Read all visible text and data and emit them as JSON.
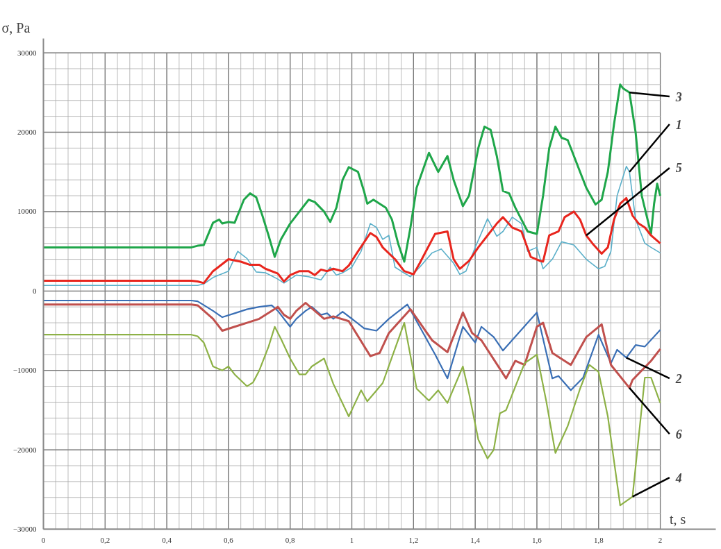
{
  "chart_data": {
    "type": "line",
    "xlabel": "t, s",
    "ylabel": "σ, Pa",
    "xlim": [
      0,
      2.18
    ],
    "ylim": [
      -30000,
      31800
    ],
    "xticks": [
      0,
      {
        "value": 0.2,
        "label": "0,2"
      },
      {
        "value": 0.4,
        "label": "0,4"
      },
      {
        "value": 0.6,
        "label": "0,6"
      },
      {
        "value": 0.8,
        "label": "0,8"
      },
      1,
      {
        "value": 1.2,
        "label": "1,2"
      },
      {
        "value": 1.4,
        "label": "1,4"
      },
      {
        "value": 1.6,
        "label": "1,6"
      },
      {
        "value": 1.8,
        "label": "1,8"
      },
      2
    ],
    "yticks": [
      -30000,
      -20000,
      -10000,
      0,
      10000,
      20000,
      30000
    ],
    "grid": true,
    "marker": "none",
    "line_style": "solid",
    "series": [
      {
        "name": "3",
        "color": "#1fa64a",
        "x": [
          0,
          0.48,
          0.5,
          0.52,
          0.55,
          0.57,
          0.58,
          0.6,
          0.62,
          0.65,
          0.67,
          0.69,
          0.71,
          0.73,
          0.75,
          0.77,
          0.8,
          0.83,
          0.86,
          0.88,
          0.91,
          0.93,
          0.95,
          0.97,
          0.99,
          1.02,
          1.04,
          1.05,
          1.07,
          1.09,
          1.11,
          1.13,
          1.15,
          1.17,
          1.19,
          1.21,
          1.25,
          1.28,
          1.31,
          1.33,
          1.36,
          1.38,
          1.41,
          1.43,
          1.45,
          1.47,
          1.49,
          1.51,
          1.53,
          1.55,
          1.57,
          1.6,
          1.62,
          1.64,
          1.66,
          1.68,
          1.7,
          1.72,
          1.74,
          1.76,
          1.79,
          1.81,
          1.83,
          1.85,
          1.87,
          1.88,
          1.9,
          1.92,
          1.94,
          1.97,
          1.98,
          1.99,
          2.0
        ],
        "values": [
          5500,
          5500,
          5700,
          5800,
          8600,
          9000,
          8500,
          8700,
          8600,
          11500,
          12300,
          11800,
          9500,
          7000,
          4300,
          6500,
          8500,
          10000,
          11500,
          11200,
          10000,
          8700,
          10500,
          14000,
          15600,
          15000,
          12500,
          11000,
          11500,
          11000,
          10500,
          9000,
          6000,
          3700,
          8000,
          13000,
          17400,
          15000,
          17000,
          14000,
          10700,
          12000,
          18000,
          20700,
          20300,
          17000,
          12600,
          12300,
          10500,
          9000,
          7500,
          7200,
          12000,
          18000,
          20700,
          19300,
          19000,
          17000,
          15000,
          13000,
          10900,
          11500,
          15000,
          21000,
          26000,
          25500,
          25000,
          20000,
          12000,
          7200,
          11000,
          13500,
          12000
        ]
      },
      {
        "name": "1",
        "color": "#5aafc9",
        "x": [
          0,
          0.48,
          0.5,
          0.52,
          0.55,
          0.6,
          0.63,
          0.66,
          0.69,
          0.72,
          0.76,
          0.78,
          0.82,
          0.86,
          0.9,
          0.93,
          0.95,
          0.97,
          1.0,
          1.03,
          1.06,
          1.08,
          1.1,
          1.12,
          1.14,
          1.16,
          1.19,
          1.22,
          1.26,
          1.29,
          1.33,
          1.35,
          1.37,
          1.4,
          1.44,
          1.47,
          1.49,
          1.52,
          1.55,
          1.57,
          1.6,
          1.62,
          1.65,
          1.68,
          1.72,
          1.76,
          1.8,
          1.82,
          1.84,
          1.86,
          1.89,
          1.9,
          1.92,
          1.95,
          1.97,
          2.0
        ],
        "values": [
          700,
          700,
          700,
          900,
          1700,
          2500,
          5000,
          4100,
          2400,
          2300,
          1500,
          1000,
          2000,
          1800,
          1400,
          3000,
          2000,
          2300,
          3000,
          5000,
          8500,
          8000,
          6500,
          7000,
          3000,
          2500,
          1800,
          3000,
          4800,
          5300,
          3500,
          2100,
          2500,
          5500,
          9100,
          6900,
          7500,
          9300,
          8500,
          5000,
          5500,
          2800,
          4000,
          6200,
          5800,
          4000,
          2800,
          3100,
          5000,
          12000,
          15700,
          15000,
          9000,
          6000,
          5500,
          4800
        ]
      },
      {
        "name": "5",
        "color": "#e8261e",
        "x": [
          0,
          0.48,
          0.5,
          0.52,
          0.55,
          0.6,
          0.64,
          0.67,
          0.7,
          0.72,
          0.76,
          0.78,
          0.8,
          0.83,
          0.86,
          0.88,
          0.9,
          0.92,
          0.94,
          0.97,
          0.99,
          1.02,
          1.06,
          1.08,
          1.1,
          1.14,
          1.17,
          1.2,
          1.22,
          1.27,
          1.31,
          1.33,
          1.35,
          1.38,
          1.41,
          1.44,
          1.47,
          1.49,
          1.52,
          1.55,
          1.58,
          1.61,
          1.62,
          1.64,
          1.67,
          1.69,
          1.72,
          1.74,
          1.76,
          1.78,
          1.81,
          1.83,
          1.85,
          1.87,
          1.89,
          1.91,
          1.93,
          1.95,
          1.97,
          2.0
        ],
        "values": [
          1300,
          1300,
          1200,
          1000,
          2500,
          4000,
          3700,
          3300,
          3300,
          2800,
          2200,
          1200,
          2000,
          2500,
          2500,
          2000,
          2700,
          2500,
          2800,
          2500,
          3200,
          5000,
          7300,
          6800,
          5500,
          4000,
          2500,
          2100,
          3500,
          7200,
          7500,
          4000,
          2800,
          3800,
          5500,
          7000,
          8500,
          9300,
          8000,
          7500,
          4300,
          3800,
          3700,
          7000,
          7500,
          9300,
          10000,
          9000,
          7000,
          6000,
          4700,
          5500,
          9000,
          11000,
          11700,
          9500,
          8500,
          8000,
          7000,
          6000
        ]
      },
      {
        "name": "2",
        "color": "#3a6fb5",
        "x": [
          0,
          0.48,
          0.5,
          0.55,
          0.58,
          0.62,
          0.66,
          0.7,
          0.74,
          0.76,
          0.8,
          0.82,
          0.85,
          0.87,
          0.9,
          0.92,
          0.94,
          0.97,
          1.04,
          1.08,
          1.12,
          1.18,
          1.22,
          1.27,
          1.31,
          1.36,
          1.4,
          1.42,
          1.46,
          1.49,
          1.54,
          1.6,
          1.65,
          1.67,
          1.71,
          1.75,
          1.8,
          1.84,
          1.86,
          1.89,
          1.92,
          1.95,
          2.0
        ],
        "values": [
          -1200,
          -1200,
          -1300,
          -2500,
          -3300,
          -2800,
          -2300,
          -2000,
          -1800,
          -2500,
          -4500,
          -3500,
          -2500,
          -2000,
          -3000,
          -2800,
          -3500,
          -2600,
          -4700,
          -5000,
          -3500,
          -1700,
          -4500,
          -8000,
          -11000,
          -4500,
          -6500,
          -4500,
          -5800,
          -7500,
          -5300,
          -2700,
          -11000,
          -10700,
          -12500,
          -10900,
          -5500,
          -9100,
          -7400,
          -8400,
          -6800,
          -7000,
          -4900
        ]
      },
      {
        "name": "6",
        "color": "#c0504d",
        "x": [
          0,
          0.48,
          0.5,
          0.55,
          0.58,
          0.62,
          0.66,
          0.7,
          0.74,
          0.76,
          0.78,
          0.8,
          0.82,
          0.85,
          0.88,
          0.91,
          0.94,
          0.99,
          1.06,
          1.09,
          1.12,
          1.19,
          1.26,
          1.31,
          1.36,
          1.39,
          1.42,
          1.5,
          1.53,
          1.56,
          1.6,
          1.62,
          1.65,
          1.71,
          1.76,
          1.81,
          1.84,
          1.9,
          1.91,
          1.97,
          2.0
        ],
        "values": [
          -1700,
          -1700,
          -1800,
          -3500,
          -5000,
          -4500,
          -4000,
          -3500,
          -2500,
          -2000,
          -3000,
          -3500,
          -2500,
          -1500,
          -2500,
          -3500,
          -3200,
          -3800,
          -8200,
          -7800,
          -5300,
          -2300,
          -6200,
          -7700,
          -2700,
          -5300,
          -6200,
          -11000,
          -8800,
          -9300,
          -4500,
          -4000,
          -7800,
          -9300,
          -5800,
          -4200,
          -9300,
          -12200,
          -11200,
          -8800,
          -7300
        ]
      },
      {
        "name": "4",
        "color": "#8db146",
        "x": [
          0,
          0.48,
          0.5,
          0.52,
          0.55,
          0.58,
          0.6,
          0.62,
          0.66,
          0.68,
          0.7,
          0.73,
          0.75,
          0.77,
          0.8,
          0.83,
          0.85,
          0.87,
          0.89,
          0.91,
          0.94,
          0.99,
          1.03,
          1.05,
          1.1,
          1.17,
          1.21,
          1.25,
          1.28,
          1.31,
          1.36,
          1.38,
          1.41,
          1.44,
          1.46,
          1.48,
          1.5,
          1.56,
          1.6,
          1.63,
          1.66,
          1.7,
          1.74,
          1.77,
          1.8,
          1.83,
          1.87,
          1.91,
          1.95,
          1.97,
          2.0
        ],
        "values": [
          -5500,
          -5500,
          -5700,
          -6500,
          -9500,
          -10000,
          -9500,
          -10500,
          -12000,
          -11500,
          -10000,
          -7000,
          -4500,
          -6000,
          -8500,
          -10500,
          -10500,
          -9500,
          -9000,
          -8500,
          -11700,
          -15800,
          -12500,
          -13900,
          -11600,
          -4000,
          -12300,
          -13800,
          -12500,
          -14100,
          -9500,
          -12900,
          -18700,
          -21100,
          -20000,
          -15400,
          -15000,
          -9100,
          -8000,
          -13800,
          -20400,
          -17000,
          -12300,
          -9300,
          -10200,
          -15800,
          -27000,
          -25900,
          -10900,
          -10900,
          -14100
        ]
      }
    ]
  }
}
